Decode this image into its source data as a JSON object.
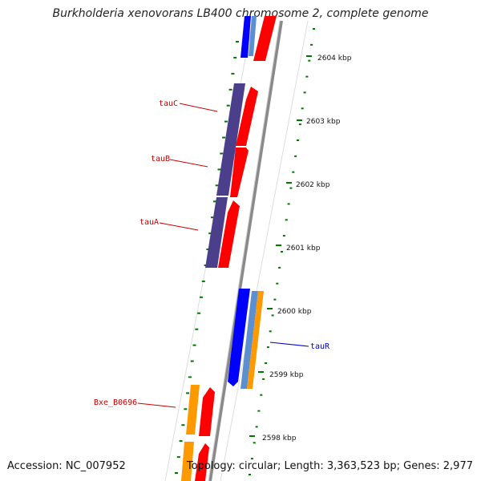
{
  "title": "Burkholderia xenovorans LB400 chromosome 2, complete genome",
  "accession": "Accession: NC_007952",
  "topology": "Topology: circular; Length: 3,363,523 bp; Genes: 2,977",
  "ruler_labels": [
    "2604 kbp",
    "2603 kbp",
    "2602 kbp",
    "2601 kbp",
    "2600 kbp",
    "2599 kbp",
    "2598 kbp"
  ],
  "gene_labels": {
    "tauC": "tauC",
    "tauB": "tauB",
    "tauA": "tauA",
    "tauR": "tauR",
    "bxe": "Bxe_B0696"
  },
  "colors": {
    "label_red": "#cc0000",
    "label_blue": "#0000cc",
    "gene_red": "#ff0000",
    "gene_blue": "#0000ff",
    "gene_steelblue": "#5b8fd0",
    "gene_purple": "#4b3f8c",
    "gene_orange": "#ff9900",
    "backbone": "#8a8a8a",
    "tick_green": "#007700"
  }
}
